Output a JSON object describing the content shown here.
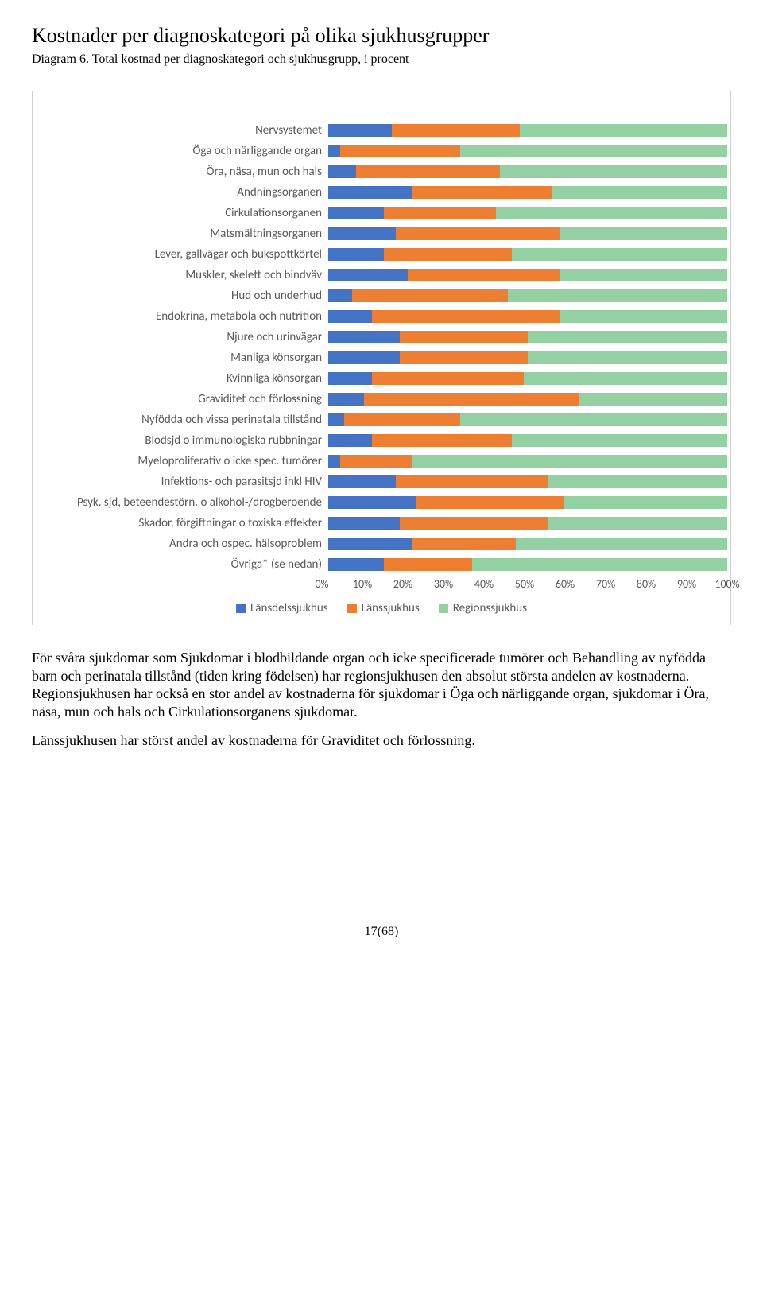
{
  "title": "Kostnader per diagnoskategori på olika sjukhusgrupper",
  "subtitle": "Diagram 6. Total kostnad per diagnoskategori och sjukhusgrupp, i procent",
  "chart": {
    "type": "stacked-bar-horizontal",
    "series": [
      {
        "name": "Länsdelssjukhus",
        "color": "#4473c5"
      },
      {
        "name": "Länssjukhus",
        "color": "#ee7e32"
      },
      {
        "name": "Regionssjukhus",
        "color": "#93d1a2"
      }
    ],
    "x_ticks": [
      "0%",
      "10%",
      "20%",
      "30%",
      "40%",
      "50%",
      "60%",
      "70%",
      "80%",
      "90%",
      "100%"
    ],
    "label_fontsize": 15,
    "axis_fontsize": 14,
    "background_color": "#ffffff",
    "border_color": "#cfcfcf",
    "rows": [
      {
        "label": "Nervsystemet",
        "values": [
          16,
          32,
          52
        ]
      },
      {
        "label": "Öga och närliggande organ",
        "values": [
          3,
          30,
          67
        ]
      },
      {
        "label": "Öra, näsa, mun och hals",
        "values": [
          7,
          36,
          57
        ]
      },
      {
        "label": "Andningsorganen",
        "values": [
          21,
          35,
          44
        ]
      },
      {
        "label": "Cirkulationsorganen",
        "values": [
          14,
          28,
          58
        ]
      },
      {
        "label": "Matsmältningsorganen",
        "values": [
          17,
          41,
          42
        ]
      },
      {
        "label": "Lever, gallvägar och bukspottkörtel",
        "values": [
          14,
          32,
          54
        ]
      },
      {
        "label": "Muskler, skelett och bindväv",
        "values": [
          20,
          38,
          42
        ]
      },
      {
        "label": "Hud och underhud",
        "values": [
          6,
          39,
          55
        ]
      },
      {
        "label": "Endokrina, metabola och nutrition",
        "values": [
          11,
          47,
          42
        ]
      },
      {
        "label": "Njure och urinvägar",
        "values": [
          18,
          32,
          50
        ]
      },
      {
        "label": "Manliga könsorgan",
        "values": [
          18,
          32,
          50
        ]
      },
      {
        "label": "Kvinnliga könsorgan",
        "values": [
          11,
          38,
          51
        ]
      },
      {
        "label": "Graviditet och förlossning",
        "values": [
          9,
          54,
          37
        ]
      },
      {
        "label": "Nyfödda och vissa perinatala tillstånd",
        "values": [
          4,
          29,
          67
        ]
      },
      {
        "label": "Blodsjd o immunologiska rubbningar",
        "values": [
          11,
          35,
          54
        ]
      },
      {
        "label": "Myeloproliferativ o icke spec. tumörer",
        "values": [
          3,
          18,
          79
        ]
      },
      {
        "label": "Infektions- och parasitsjd inkl HIV",
        "values": [
          17,
          38,
          45
        ]
      },
      {
        "label": "Psyk. sjd, beteendestörn. o alkohol-/drogberoende",
        "values": [
          22,
          37,
          41
        ]
      },
      {
        "label": "Skador, förgiftningar o toxiska effekter",
        "values": [
          18,
          37,
          45
        ]
      },
      {
        "label": "Andra och ospec. hälsoproblem",
        "values": [
          21,
          26,
          53
        ]
      },
      {
        "label": "Övriga* (se nedan)",
        "values": [
          14,
          22,
          64
        ]
      }
    ]
  },
  "paragraphs": [
    "För svåra sjukdomar som Sjukdomar i blodbildande organ och icke specificerade tumörer och Behandling av nyfödda barn och perinatala tillstånd (tiden kring födelsen) har regionsjukhusen den absolut största andelen av kostnaderna. Regionsjukhusen har också en stor andel av kostnaderna för sjukdomar i Öga och närliggande organ, sjukdomar i Öra, näsa, mun och hals och Cirkulationsorganens sjukdomar.",
    "Länssjukhusen har störst andel av kostnaderna för Graviditet och förlossning."
  ],
  "footer": "17(68)"
}
